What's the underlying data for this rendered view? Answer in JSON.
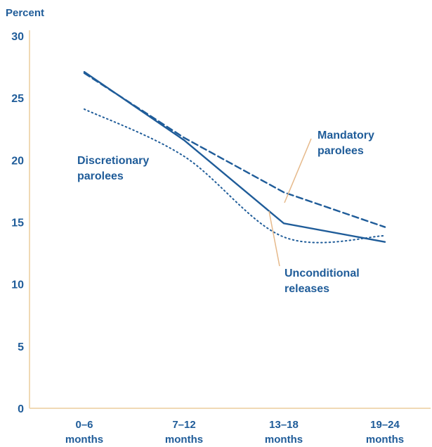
{
  "chart_data": {
    "type": "line",
    "ylabel": "Percent",
    "ylim": [
      0,
      30
    ],
    "yticks": [
      0,
      5,
      10,
      15,
      20,
      25,
      30
    ],
    "categories": [
      [
        "0–6",
        "months"
      ],
      [
        "7–12",
        "months"
      ],
      [
        "13–18",
        "months"
      ],
      [
        "19–24",
        "months"
      ]
    ],
    "series": [
      {
        "name": "Mandatory parolees",
        "label_lines": [
          "Mandatory",
          "parolees"
        ],
        "style": "dashed",
        "values": [
          27.0,
          21.8,
          17.4,
          14.6
        ]
      },
      {
        "name": "Discretionary parolees",
        "label_lines": [
          "Discretionary",
          "parolees"
        ],
        "style": "solid",
        "values": [
          27.1,
          21.6,
          14.9,
          13.4
        ]
      },
      {
        "name": "Unconditional releases",
        "label_lines": [
          "Unconditional",
          "releases"
        ],
        "style": "dotted",
        "values": [
          24.1,
          20.3,
          13.8,
          13.9
        ]
      }
    ],
    "colors": {
      "line": "#1f5c99",
      "text": "#1f5c99",
      "axis": "#f0d9b5",
      "leader": "#e6b98a"
    }
  }
}
